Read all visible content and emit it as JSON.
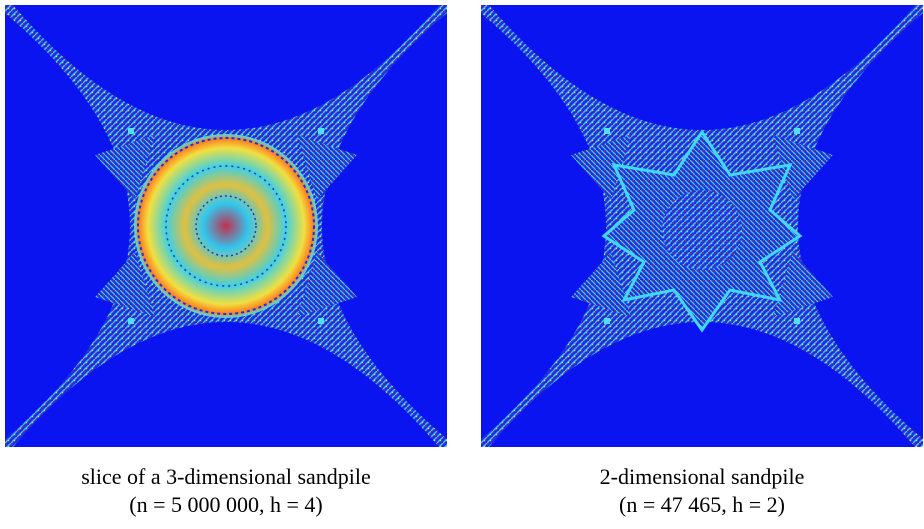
{
  "figures": [
    {
      "caption": [
        "slice of a 3-dimensional sandpile",
        "(n = 5 000 000, h = 4)"
      ]
    },
    {
      "caption": [
        "2-dimensional sandpile",
        "(n = 47 465, h = 2)"
      ]
    }
  ]
}
